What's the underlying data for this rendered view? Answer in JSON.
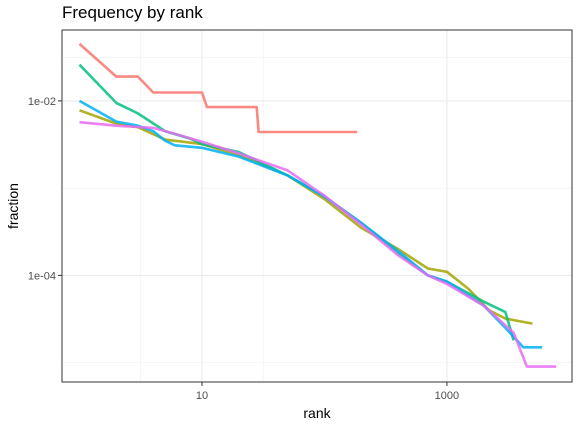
{
  "chart_data": {
    "type": "line",
    "title": "Frequency by rank",
    "xlabel": "rank",
    "ylabel": "fraction",
    "x_scale": "log10",
    "y_scale": "log10",
    "xlim": [
      0.72,
      10500
    ],
    "ylim": [
      6e-06,
      0.065
    ],
    "x_ticks": [
      10,
      1000
    ],
    "x_tick_labels": [
      "10",
      "1000"
    ],
    "y_ticks": [
      0.01,
      0.0001
    ],
    "y_tick_labels": [
      "1e-02",
      "1e-04"
    ],
    "grid": true,
    "legend": "none",
    "series": [
      {
        "color": "#F8766D",
        "points": [
          [
            1,
            0.045
          ],
          [
            2,
            0.019
          ],
          [
            3,
            0.019
          ],
          [
            4,
            0.0125
          ],
          [
            10,
            0.0125
          ],
          [
            11,
            0.0085
          ],
          [
            28,
            0.0085
          ],
          [
            29,
            0.0044
          ],
          [
            185,
            0.0044
          ]
        ]
      },
      {
        "color": "#A3A500",
        "points": [
          [
            1,
            0.0078
          ],
          [
            2,
            0.0055
          ],
          [
            3,
            0.005
          ],
          [
            5,
            0.0036
          ],
          [
            10,
            0.0032
          ],
          [
            20,
            0.0024
          ],
          [
            50,
            0.0014
          ],
          [
            100,
            0.00075
          ],
          [
            200,
            0.00035
          ],
          [
            400,
            0.0002
          ],
          [
            700,
            0.00012
          ],
          [
            1000,
            0.00011
          ],
          [
            1500,
            7e-05
          ],
          [
            2200,
            4e-05
          ],
          [
            3000,
            3.2e-05
          ],
          [
            5000,
            2.8e-05
          ]
        ]
      },
      {
        "color": "#00BF7D",
        "points": [
          [
            1,
            0.026
          ],
          [
            2,
            0.0095
          ],
          [
            3,
            0.0072
          ],
          [
            5,
            0.0045
          ],
          [
            8,
            0.0037
          ],
          [
            10,
            0.0032
          ],
          [
            20,
            0.0026
          ],
          [
            50,
            0.0014
          ],
          [
            100,
            0.0008
          ],
          [
            200,
            0.0004
          ],
          [
            400,
            0.00018
          ],
          [
            700,
            0.0001
          ],
          [
            1000,
            8.5e-05
          ],
          [
            2000,
            5e-05
          ],
          [
            3000,
            3.8e-05
          ],
          [
            3500,
            1.8e-05
          ]
        ]
      },
      {
        "color": "#00B0F6",
        "points": [
          [
            1,
            0.01
          ],
          [
            2,
            0.0058
          ],
          [
            3,
            0.0052
          ],
          [
            4,
            0.0045
          ],
          [
            5,
            0.0035
          ],
          [
            6,
            0.0031
          ],
          [
            10,
            0.0029
          ],
          [
            20,
            0.0023
          ],
          [
            50,
            0.0014
          ],
          [
            100,
            0.0008
          ],
          [
            200,
            0.0004
          ],
          [
            400,
            0.00019
          ],
          [
            700,
            0.0001
          ],
          [
            1000,
            8.5e-05
          ],
          [
            2000,
            4.5e-05
          ],
          [
            3000,
            2.5e-05
          ],
          [
            4200,
            1.5e-05
          ],
          [
            6000,
            1.5e-05
          ]
        ]
      },
      {
        "color": "#E76BF3",
        "points": [
          [
            1,
            0.0057
          ],
          [
            2,
            0.0052
          ],
          [
            4,
            0.0049
          ],
          [
            6,
            0.0042
          ],
          [
            10,
            0.0034
          ],
          [
            20,
            0.0025
          ],
          [
            50,
            0.0016
          ],
          [
            100,
            0.00082
          ],
          [
            200,
            0.00038
          ],
          [
            400,
            0.00017
          ],
          [
            700,
            0.0001
          ],
          [
            1000,
            8e-05
          ],
          [
            2000,
            4.5e-05
          ],
          [
            3500,
            2.2e-05
          ],
          [
            4500,
            9e-06
          ],
          [
            7800,
            9e-06
          ]
        ]
      }
    ]
  }
}
